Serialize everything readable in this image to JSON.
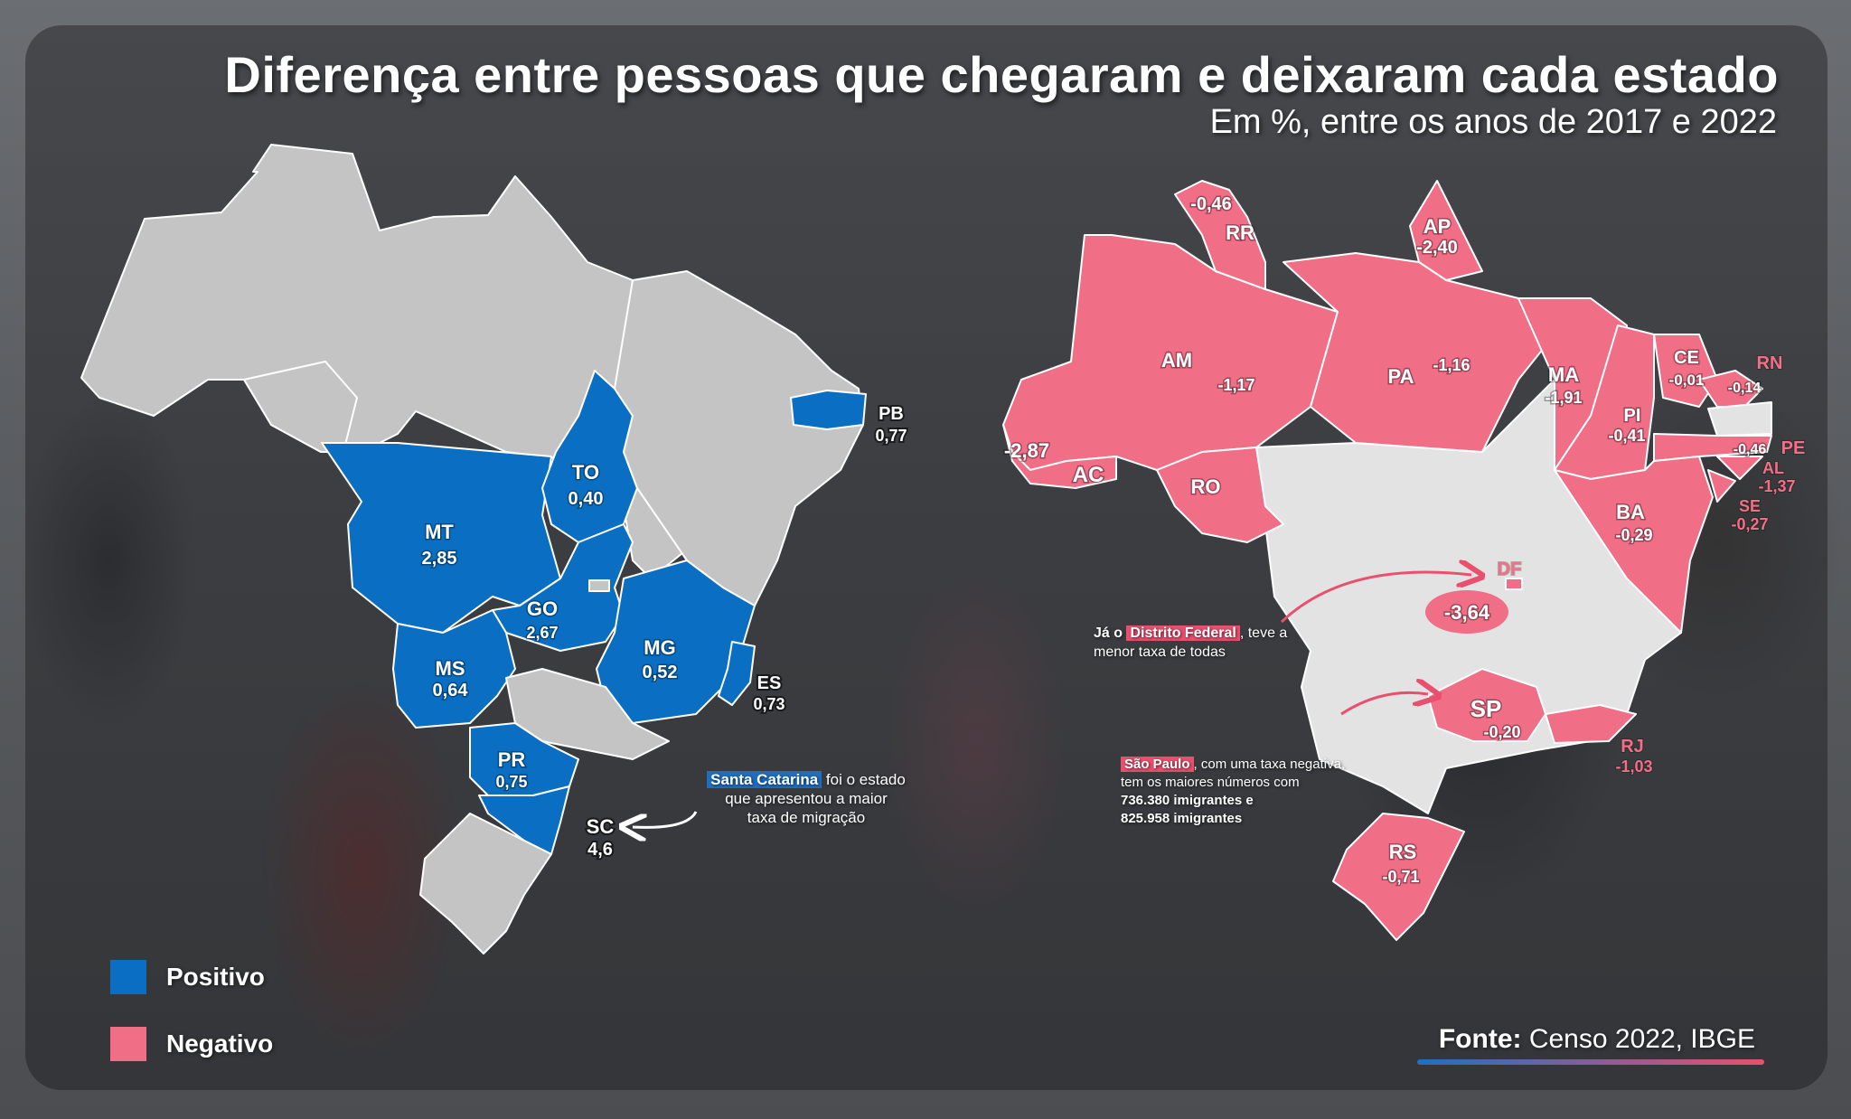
{
  "title": "Diferença entre pessoas que chegaram e deixaram cada estado",
  "subtitle": "Em %, entre os anos de 2017 e 2022",
  "colors": {
    "positivo": "#0a6fc2",
    "negativo": "#f06e86",
    "neutral_left": "#c4c4c4",
    "neutral_right": "#e3e3e3"
  },
  "left_map": {
    "states": [
      {
        "sigla": "MT",
        "valor": "2,85"
      },
      {
        "sigla": "TO",
        "valor": "0,40"
      },
      {
        "sigla": "GO",
        "valor": "2,67"
      },
      {
        "sigla": "MS",
        "valor": "0,64"
      },
      {
        "sigla": "MG",
        "valor": "0,52"
      },
      {
        "sigla": "ES",
        "valor": "0,73"
      },
      {
        "sigla": "PR",
        "valor": "0,75"
      },
      {
        "sigla": "SC",
        "valor": "4,6"
      },
      {
        "sigla": "PB",
        "valor": "0,77"
      }
    ],
    "annotation": {
      "highlight": "Santa Catarina",
      "rest_line1": " foi o estado",
      "line2": "que apresentou a maior",
      "line3": "taxa de migração"
    }
  },
  "right_map": {
    "states": [
      {
        "sigla": "RR",
        "valor": "-0,46"
      },
      {
        "sigla": "AP",
        "valor": "-2,40"
      },
      {
        "sigla": "AM",
        "valor": "-1,17"
      },
      {
        "sigla": "PA",
        "valor": "-1,16"
      },
      {
        "sigla": "MA",
        "valor": "-1,91"
      },
      {
        "sigla": "CE",
        "valor": "-0,01"
      },
      {
        "sigla": "RN",
        "valor": "-0,14"
      },
      {
        "sigla": "PI",
        "valor": "-0,41"
      },
      {
        "sigla": "PE",
        "valor": "-0,46"
      },
      {
        "sigla": "AL",
        "valor": "-1,37"
      },
      {
        "sigla": "SE",
        "valor": "-0,27"
      },
      {
        "sigla": "AC",
        "valor": "-2,87"
      },
      {
        "sigla": "RO",
        "valor": ""
      },
      {
        "sigla": "BA",
        "valor": "-0,29"
      },
      {
        "sigla": "DF",
        "valor": "-3,64"
      },
      {
        "sigla": "SP",
        "valor": "-0,20"
      },
      {
        "sigla": "RJ",
        "valor": "-1,03"
      },
      {
        "sigla": "RS",
        "valor": "-0,71"
      }
    ],
    "annotation_df": {
      "prefix": "Já o ",
      "highlight": "Distrito Federal",
      "rest_line1": ", teve a",
      "line2": "menor taxa de todas"
    },
    "annotation_sp": {
      "highlight": "São Paulo",
      "rest_line1": ", com uma taxa negativa,",
      "line2": "tem os maiores números com",
      "line3": "736.380 imigrantes e",
      "line4": "825.958 imigrantes"
    }
  },
  "legend": {
    "positivo": "Positivo",
    "negativo": "Negativo"
  },
  "source": {
    "label": "Fonte:",
    "text": " Censo 2022, IBGE"
  }
}
